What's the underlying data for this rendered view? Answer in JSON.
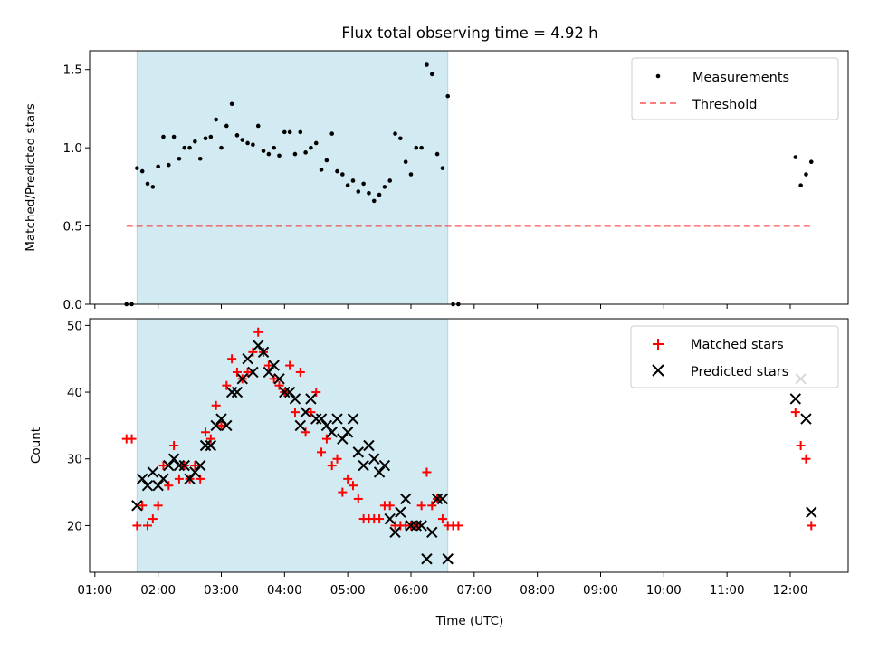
{
  "title": "Flux total observing time = 4.92 h",
  "colors": {
    "shade": "#add8e6",
    "measurement": "#000000",
    "threshold": "#ff0000",
    "matched": "#ff0000",
    "predicted": "#000000"
  },
  "chart_data": [
    {
      "type": "scatter",
      "ylabel": "Matched/Predicted stars",
      "ylim": [
        0,
        1.62
      ],
      "yticks": [
        "0.0",
        "0.5",
        "1.0",
        "1.5"
      ],
      "shaded_interval": [
        "01:40",
        "06:35"
      ],
      "threshold": {
        "value": 0.5,
        "x_range": [
          "01:30",
          "12:20"
        ]
      },
      "legend": {
        "placement": "top-right",
        "measurements": "Measurements",
        "threshold": "Threshold"
      },
      "series": [
        {
          "name": "Measurements",
          "x": [
            "01:30",
            "01:35",
            "01:40",
            "01:45",
            "01:50",
            "01:55",
            "02:00",
            "02:05",
            "02:10",
            "02:15",
            "02:20",
            "02:25",
            "02:30",
            "02:35",
            "02:40",
            "02:45",
            "02:50",
            "02:55",
            "03:00",
            "03:05",
            "03:10",
            "03:15",
            "03:20",
            "03:25",
            "03:30",
            "03:35",
            "03:40",
            "03:45",
            "03:50",
            "03:55",
            "04:00",
            "04:05",
            "04:10",
            "04:15",
            "04:20",
            "04:25",
            "04:30",
            "04:35",
            "04:40",
            "04:45",
            "04:50",
            "04:55",
            "05:00",
            "05:05",
            "05:10",
            "05:15",
            "05:20",
            "05:25",
            "05:30",
            "05:35",
            "05:40",
            "05:45",
            "05:50",
            "05:55",
            "06:00",
            "06:05",
            "06:10",
            "06:15",
            "06:20",
            "06:25",
            "06:30",
            "06:35",
            "06:40",
            "06:45",
            "12:05",
            "12:10",
            "12:15",
            "12:20"
          ],
          "y": [
            0.0,
            0.0,
            0.87,
            0.85,
            0.77,
            0.75,
            0.88,
            1.07,
            0.89,
            1.07,
            0.93,
            1.0,
            1.0,
            1.04,
            0.93,
            1.06,
            1.07,
            1.18,
            1.0,
            1.14,
            1.28,
            1.08,
            1.05,
            1.03,
            1.02,
            1.14,
            0.98,
            0.96,
            1.0,
            0.95,
            1.1,
            1.1,
            0.96,
            1.1,
            0.97,
            1.0,
            1.03,
            0.86,
            0.92,
            1.09,
            0.85,
            0.83,
            0.76,
            0.79,
            0.72,
            0.77,
            0.71,
            0.66,
            0.7,
            0.75,
            0.79,
            1.09,
            1.06,
            0.91,
            0.83,
            1.0,
            1.0,
            1.53,
            1.47,
            0.96,
            0.87,
            1.33,
            0.0,
            0.0,
            0.94,
            0.76,
            0.83,
            0.91
          ]
        }
      ]
    },
    {
      "type": "scatter",
      "xlabel": "Time (UTC)",
      "ylabel": "Count",
      "ylim": [
        13,
        51
      ],
      "yticks": [
        "20",
        "30",
        "40",
        "50"
      ],
      "xlim": [
        "00:55",
        "12:55"
      ],
      "xticks": [
        "01:00",
        "02:00",
        "03:00",
        "04:00",
        "05:00",
        "06:00",
        "07:00",
        "08:00",
        "09:00",
        "10:00",
        "11:00",
        "12:00"
      ],
      "shaded_interval": [
        "01:40",
        "06:35"
      ],
      "legend": {
        "placement": "top-right"
      },
      "series": [
        {
          "name": "Matched stars",
          "x": [
            "01:30",
            "01:35",
            "01:40",
            "01:45",
            "01:50",
            "01:55",
            "02:00",
            "02:05",
            "02:10",
            "02:15",
            "02:20",
            "02:25",
            "02:30",
            "02:35",
            "02:40",
            "02:45",
            "02:50",
            "02:55",
            "03:00",
            "03:05",
            "03:10",
            "03:15",
            "03:20",
            "03:25",
            "03:30",
            "03:35",
            "03:40",
            "03:45",
            "03:50",
            "03:55",
            "04:00",
            "04:05",
            "04:10",
            "04:15",
            "04:20",
            "04:25",
            "04:30",
            "04:35",
            "04:40",
            "04:45",
            "04:50",
            "04:55",
            "05:00",
            "05:05",
            "05:10",
            "05:15",
            "05:20",
            "05:25",
            "05:30",
            "05:35",
            "05:40",
            "05:45",
            "05:50",
            "05:55",
            "06:00",
            "06:05",
            "06:10",
            "06:15",
            "06:20",
            "06:25",
            "06:30",
            "06:35",
            "06:40",
            "06:45",
            "12:05",
            "12:10",
            "12:15",
            "12:20"
          ],
          "y": [
            33,
            33,
            20,
            23,
            20,
            21,
            23,
            29,
            26,
            32,
            27,
            29,
            27,
            29,
            27,
            34,
            33,
            38,
            35,
            41,
            45,
            43,
            42,
            43,
            46,
            49,
            46,
            44,
            42,
            41,
            40,
            44,
            37,
            43,
            34,
            37,
            40,
            31,
            33,
            29,
            30,
            25,
            27,
            26,
            24,
            21,
            21,
            21,
            21,
            23,
            23,
            20,
            20,
            20,
            20,
            20,
            23,
            28,
            23,
            24,
            21,
            20,
            20,
            20,
            37,
            32,
            30,
            20
          ]
        },
        {
          "name": "Predicted stars",
          "x": [
            "01:40",
            "01:45",
            "01:50",
            "01:55",
            "02:00",
            "02:05",
            "02:10",
            "02:15",
            "02:20",
            "02:25",
            "02:30",
            "02:35",
            "02:40",
            "02:45",
            "02:50",
            "02:55",
            "03:00",
            "03:05",
            "03:10",
            "03:15",
            "03:20",
            "03:25",
            "03:30",
            "03:35",
            "03:40",
            "03:45",
            "03:50",
            "03:55",
            "04:00",
            "04:05",
            "04:10",
            "04:15",
            "04:20",
            "04:25",
            "04:30",
            "04:35",
            "04:40",
            "04:45",
            "04:50",
            "04:55",
            "05:00",
            "05:05",
            "05:10",
            "05:15",
            "05:20",
            "05:25",
            "05:30",
            "05:35",
            "05:40",
            "05:45",
            "05:50",
            "05:55",
            "06:00",
            "06:05",
            "06:10",
            "06:15",
            "06:20",
            "06:25",
            "06:30",
            "06:35",
            "12:05",
            "12:10",
            "12:15",
            "12:20"
          ],
          "y": [
            23,
            27,
            26,
            28,
            26,
            27,
            29,
            30,
            29,
            29,
            27,
            28,
            29,
            32,
            32,
            35,
            36,
            35,
            40,
            40,
            42,
            45,
            43,
            47,
            46,
            43,
            44,
            42,
            40,
            40,
            39,
            35,
            37,
            39,
            36,
            36,
            35,
            34,
            36,
            33,
            34,
            36,
            31,
            29,
            32,
            30,
            28,
            29,
            21,
            19,
            22,
            24,
            20,
            20,
            20,
            15,
            19,
            24,
            24,
            15,
            39,
            42,
            36,
            22
          ]
        }
      ]
    }
  ]
}
